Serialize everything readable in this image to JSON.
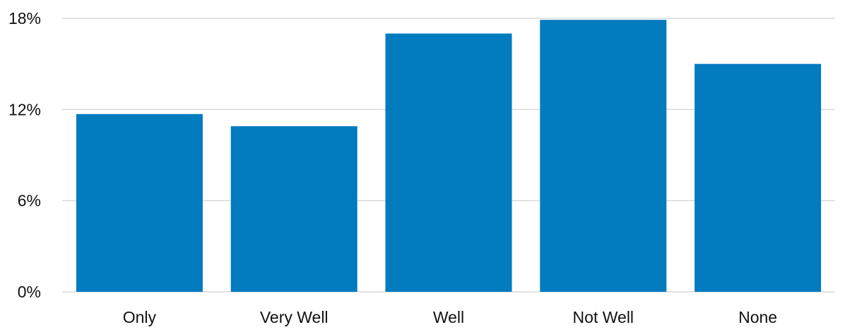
{
  "chart_data": {
    "type": "bar",
    "categories": [
      "Only",
      "Very Well",
      "Well",
      "Not Well",
      "None"
    ],
    "values": [
      11.7,
      10.9,
      17.0,
      17.9,
      15.0
    ],
    "title": "",
    "xlabel": "",
    "ylabel": "",
    "ylim": [
      0,
      18
    ],
    "yticks": [
      0,
      6,
      12,
      18
    ],
    "ytick_labels": [
      "0%",
      "6%",
      "12%",
      "18%"
    ],
    "grid": true,
    "legend": "none",
    "bar_color": "#027BBF",
    "grid_color": "#D9D9D9"
  }
}
